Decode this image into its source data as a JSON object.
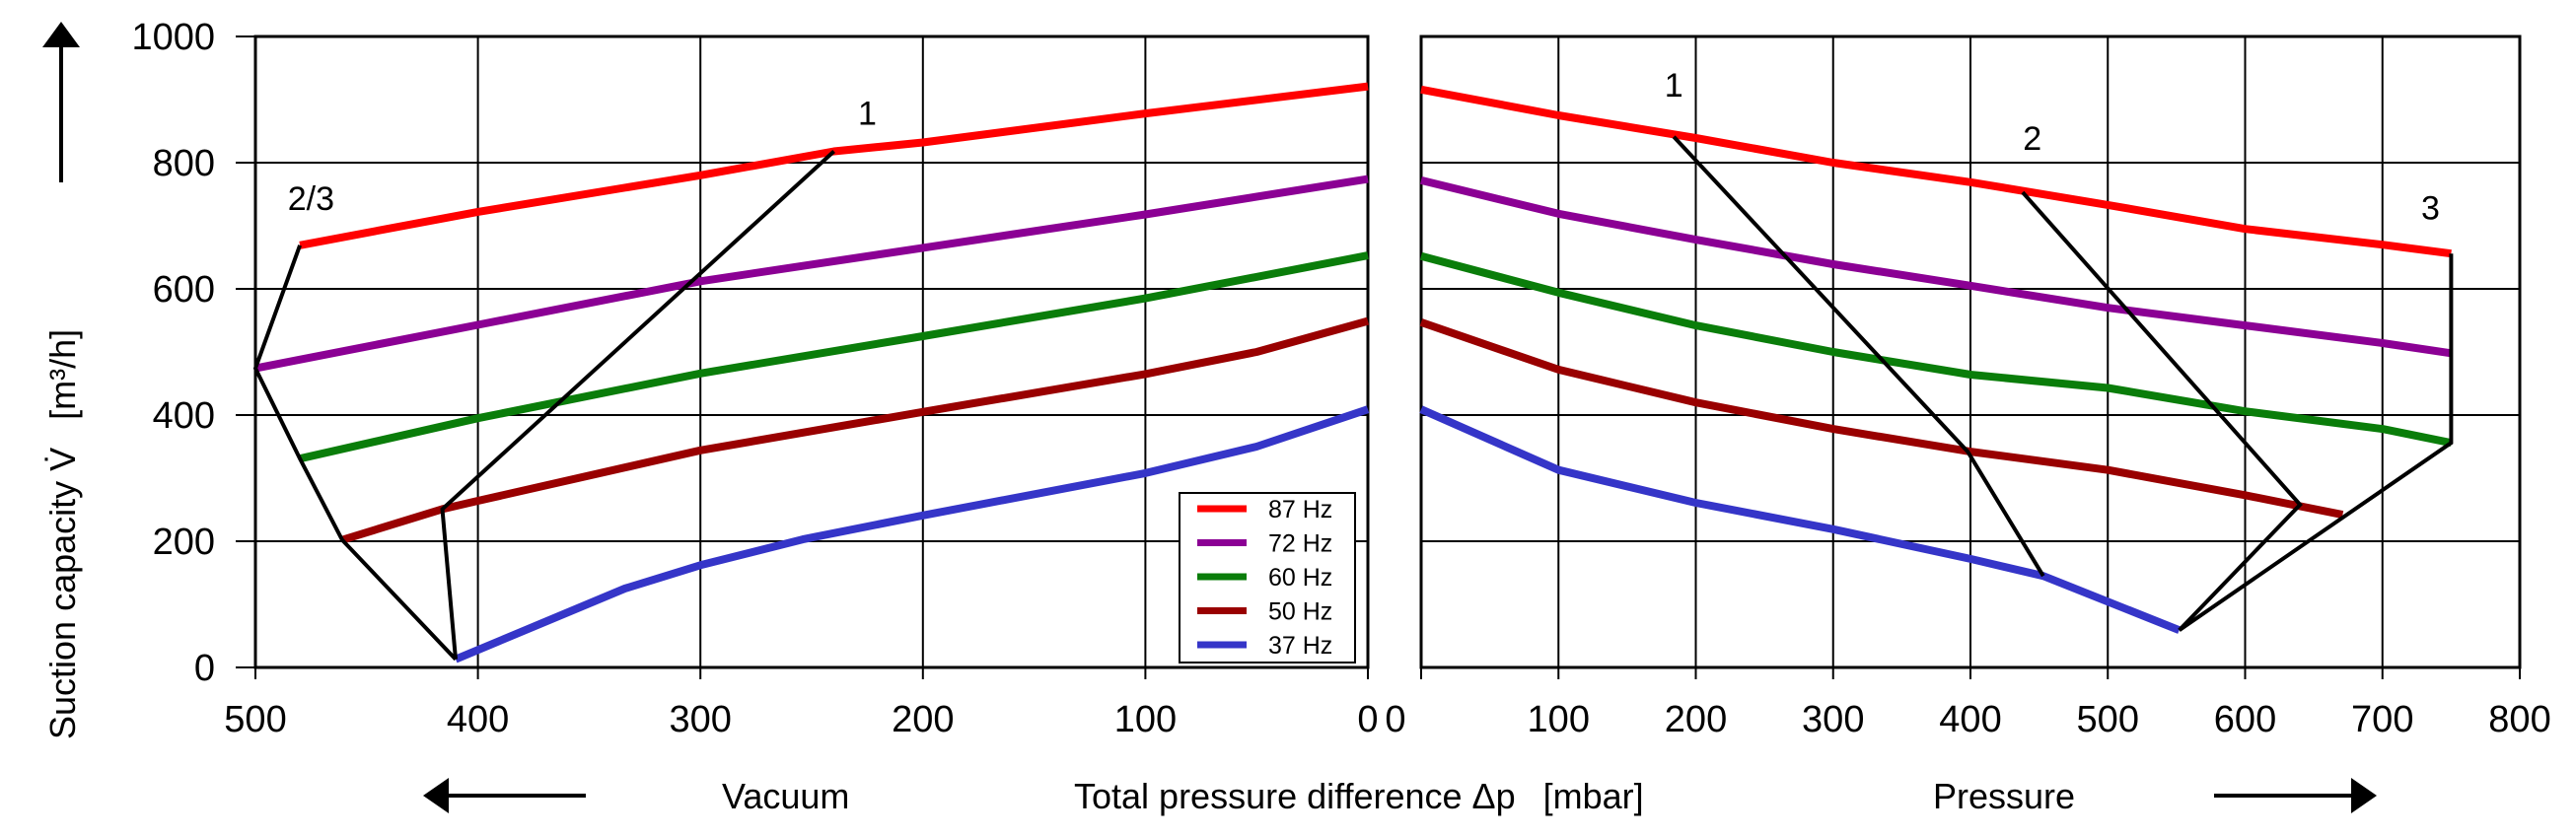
{
  "chart_data": [
    {
      "type": "line",
      "panel": "vacuum",
      "xlabel_side": "Vacuum",
      "x_reversed": true,
      "xlim": [
        500,
        0
      ],
      "ylim": [
        0,
        1000
      ],
      "xticks": [
        500,
        400,
        300,
        200,
        100,
        0
      ],
      "yticks": [
        0,
        200,
        400,
        600,
        800,
        1000
      ],
      "grid": true,
      "series": [
        {
          "name": "87 Hz",
          "color": "#ff0000",
          "points": [
            [
              480,
              669
            ],
            [
              400,
              722
            ],
            [
              300,
              780
            ],
            [
              240,
              818
            ],
            [
              200,
              832
            ],
            [
              100,
              878
            ],
            [
              0,
              921
            ]
          ]
        },
        {
          "name": "72 Hz",
          "color": "#8b0094",
          "points": [
            [
              500,
              474
            ],
            [
              400,
              543
            ],
            [
              300,
              612
            ],
            [
              200,
              665
            ],
            [
              100,
              718
            ],
            [
              0,
              774
            ]
          ]
        },
        {
          "name": "60 Hz",
          "color": "#0a7d0a",
          "points": [
            [
              480,
              331
            ],
            [
              400,
              395
            ],
            [
              300,
              466
            ],
            [
              200,
              525
            ],
            [
              100,
              585
            ],
            [
              0,
              653
            ]
          ]
        },
        {
          "name": "50 Hz",
          "color": "#990000",
          "points": [
            [
              461,
              202
            ],
            [
              416,
              251
            ],
            [
              400,
              264
            ],
            [
              300,
              344
            ],
            [
              200,
              405
            ],
            [
              100,
              465
            ],
            [
              50,
              500
            ],
            [
              0,
              549
            ]
          ]
        },
        {
          "name": "37 Hz",
          "color": "#3535c8",
          "points": [
            [
              410,
              13
            ],
            [
              334,
              125
            ],
            [
              300,
              162
            ],
            [
              254,
              203
            ],
            [
              200,
              241
            ],
            [
              100,
              308
            ],
            [
              50,
              350
            ],
            [
              0,
              409
            ]
          ]
        }
      ],
      "operating_limit_lines": [
        {
          "label": "2/3",
          "points": [
            [
              480,
              669
            ],
            [
              500,
              474
            ],
            [
              480,
              331
            ],
            [
              461,
              202
            ],
            [
              410,
              13
            ]
          ]
        },
        {
          "label": "1",
          "points": [
            [
              240,
              818
            ],
            [
              416,
              251
            ],
            [
              410,
              13
            ]
          ]
        }
      ],
      "annotations": [
        {
          "text": "2/3",
          "at": [
            475,
            725
          ]
        },
        {
          "text": "1",
          "at": [
            225,
            860
          ]
        }
      ]
    },
    {
      "type": "line",
      "panel": "pressure",
      "xlabel_side": "Pressure",
      "xlim": [
        0,
        800
      ],
      "ylim": [
        0,
        1000
      ],
      "xticks": [
        0,
        100,
        200,
        300,
        400,
        500,
        600,
        700,
        800
      ],
      "yticks": [
        0,
        200,
        400,
        600,
        800,
        1000
      ],
      "grid": true,
      "series": [
        {
          "name": "87 Hz",
          "color": "#ff0000",
          "points": [
            [
              0,
              916
            ],
            [
              100,
              875
            ],
            [
              200,
              839
            ],
            [
              300,
              800
            ],
            [
              400,
              769
            ],
            [
              500,
              733
            ],
            [
              600,
              695
            ],
            [
              700,
              670
            ],
            [
              750,
              656
            ]
          ]
        },
        {
          "name": "72 Hz",
          "color": "#8b0094",
          "points": [
            [
              0,
              772
            ],
            [
              100,
              719
            ],
            [
              200,
              678
            ],
            [
              300,
              639
            ],
            [
              400,
              605
            ],
            [
              500,
              570
            ],
            [
              600,
              542
            ],
            [
              700,
              514
            ],
            [
              750,
              498
            ]
          ]
        },
        {
          "name": "60 Hz",
          "color": "#0a7d0a",
          "points": [
            [
              0,
              652
            ],
            [
              100,
              594
            ],
            [
              200,
              542
            ],
            [
              300,
              500
            ],
            [
              400,
              464
            ],
            [
              500,
              443
            ],
            [
              600,
              406
            ],
            [
              700,
              378
            ],
            [
              750,
              356
            ]
          ]
        },
        {
          "name": "50 Hz",
          "color": "#990000",
          "points": [
            [
              0,
              547
            ],
            [
              100,
              472
            ],
            [
              200,
              420
            ],
            [
              300,
              378
            ],
            [
              400,
              342
            ],
            [
              500,
              313
            ],
            [
              600,
              273
            ],
            [
              671,
              242
            ]
          ]
        },
        {
          "name": "37 Hz",
          "color": "#3535c8",
          "points": [
            [
              0,
              409
            ],
            [
              100,
              313
            ],
            [
              200,
              261
            ],
            [
              300,
              219
            ],
            [
              400,
              172
            ],
            [
              453,
              145
            ],
            [
              552,
              59
            ]
          ]
        }
      ],
      "operating_limit_lines": [
        {
          "label": "1",
          "points": [
            [
              184,
              841
            ],
            [
              398,
              342
            ],
            [
              453,
              145
            ]
          ]
        },
        {
          "label": "2",
          "points": [
            [
              438,
              753
            ],
            [
              640,
              258
            ],
            [
              552,
              59
            ]
          ]
        },
        {
          "label": "3",
          "points": [
            [
              750,
              656
            ],
            [
              750,
              356
            ],
            [
              552,
              59
            ]
          ]
        }
      ],
      "annotations": [
        {
          "text": "1",
          "at": [
            184,
            905
          ]
        },
        {
          "text": "2",
          "at": [
            445,
            820
          ]
        },
        {
          "text": "3",
          "at": [
            735,
            710
          ]
        }
      ]
    }
  ],
  "legend": {
    "placement": "bottom-right of vacuum panel",
    "entries": [
      {
        "label": "87 Hz",
        "color": "#ff0000"
      },
      {
        "label": "72 Hz",
        "color": "#8b0094"
      },
      {
        "label": "60 Hz",
        "color": "#0a7d0a"
      },
      {
        "label": "50 Hz",
        "color": "#990000"
      },
      {
        "label": "37 Hz",
        "color": "#3535c8"
      }
    ]
  },
  "axes": {
    "ylabel": "Suction capacity V̇",
    "ylabel_unit": "[m³/h]",
    "xlabel": "Total pressure difference Δp",
    "xlabel_unit": "[mbar]",
    "vacuum_label": "Vacuum",
    "pressure_label": "Pressure"
  }
}
